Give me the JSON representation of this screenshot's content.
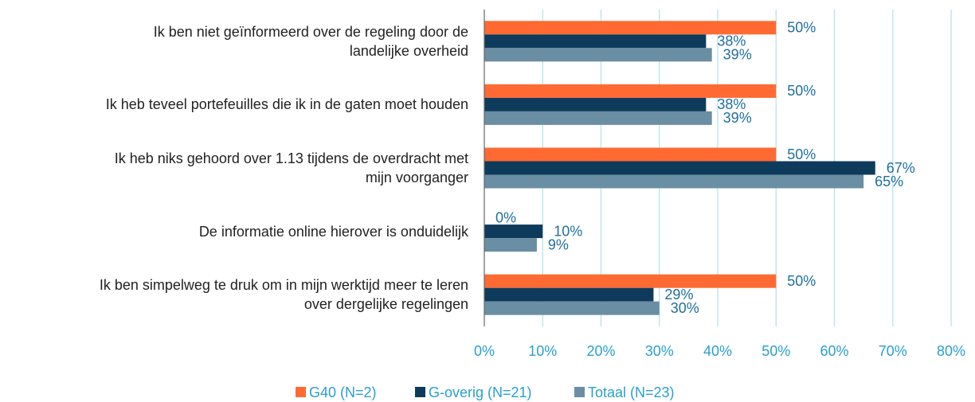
{
  "chart_data": {
    "type": "barh",
    "categories": [
      "Ik ben niet geïnformeerd over de regeling door de\nlandelijke overheid",
      "Ik heb teveel portefeuilles die ik in de gaten moet houden",
      "Ik heb niks gehoord over 1.13 tijdens de overdracht met\nmijn voorganger",
      "De informatie online hierover is onduidelijk",
      "Ik ben simpelweg te druk om in mijn werktijd meer te leren\nover dergelijke regelingen"
    ],
    "series": [
      {
        "name": "G40 (N=2)",
        "color": "#ff6a33",
        "values": [
          50,
          50,
          50,
          0,
          50
        ],
        "value_labels": [
          "50%",
          "50%",
          "50%",
          "0%",
          "50%"
        ]
      },
      {
        "name": "G-overig (N=21)",
        "color": "#0e3b5b",
        "values": [
          38,
          38,
          67,
          10,
          29
        ],
        "value_labels": [
          "38%",
          "38%",
          "67%",
          "10%",
          "29%"
        ]
      },
      {
        "name": "Totaal (N=23)",
        "color": "#6a8ea3",
        "values": [
          39,
          39,
          65,
          9,
          30
        ],
        "value_labels": [
          "39%",
          "39%",
          "65%",
          "9%",
          "30%"
        ]
      }
    ],
    "xlim": [
      0,
      80
    ],
    "xticks": [
      {
        "value": 0,
        "label": "0%"
      },
      {
        "value": 10,
        "label": "10%"
      },
      {
        "value": 20,
        "label": "20%"
      },
      {
        "value": 30,
        "label": "30%"
      },
      {
        "value": 40,
        "label": "40%"
      },
      {
        "value": 50,
        "label": "50%"
      },
      {
        "value": 60,
        "label": "60%"
      },
      {
        "value": 70,
        "label": "70%"
      },
      {
        "value": 80,
        "label": "80%"
      }
    ],
    "grid": true,
    "legend": "bottom"
  }
}
